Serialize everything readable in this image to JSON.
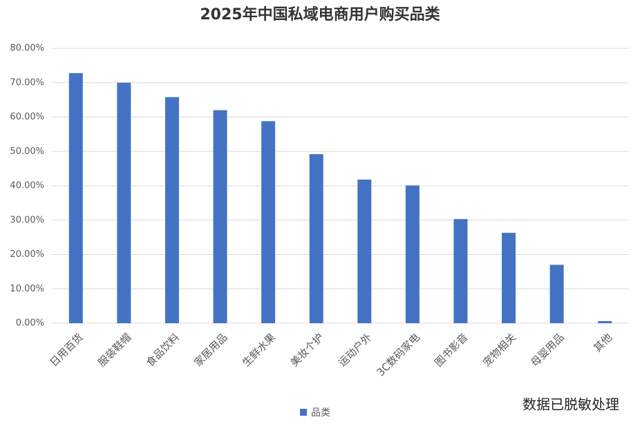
{
  "chart_data": {
    "type": "bar",
    "title": "2025年中国私域电商用户购买品类",
    "categories": [
      "日用百货",
      "服装鞋帽",
      "食品饮料",
      "家居用品",
      "生鲜水果",
      "美妆个护",
      "运动户外",
      "3C数码家电",
      "图书影音",
      "宠物相关",
      "母婴用品",
      "其他"
    ],
    "series": [
      {
        "name": "品类",
        "color": "#4472c4",
        "values": [
          72.8,
          70.0,
          65.8,
          62.0,
          58.8,
          49.2,
          41.8,
          40.1,
          30.3,
          26.3,
          17.0,
          0.6
        ]
      }
    ],
    "ylim": [
      0,
      80
    ],
    "yticks": [
      {
        "value": 0,
        "label": "0.00%"
      },
      {
        "value": 10,
        "label": "10.00%"
      },
      {
        "value": 20,
        "label": "20.00%"
      },
      {
        "value": 30,
        "label": "30.00%"
      },
      {
        "value": 40,
        "label": "40.00%"
      },
      {
        "value": 50,
        "label": "50.00%"
      },
      {
        "value": 60,
        "label": "60.00%"
      },
      {
        "value": 70,
        "label": "70.00%"
      },
      {
        "value": 80,
        "label": "80.00%"
      }
    ],
    "grid": true,
    "legend": "bottom",
    "annotation": "数据已脱敏处理"
  }
}
